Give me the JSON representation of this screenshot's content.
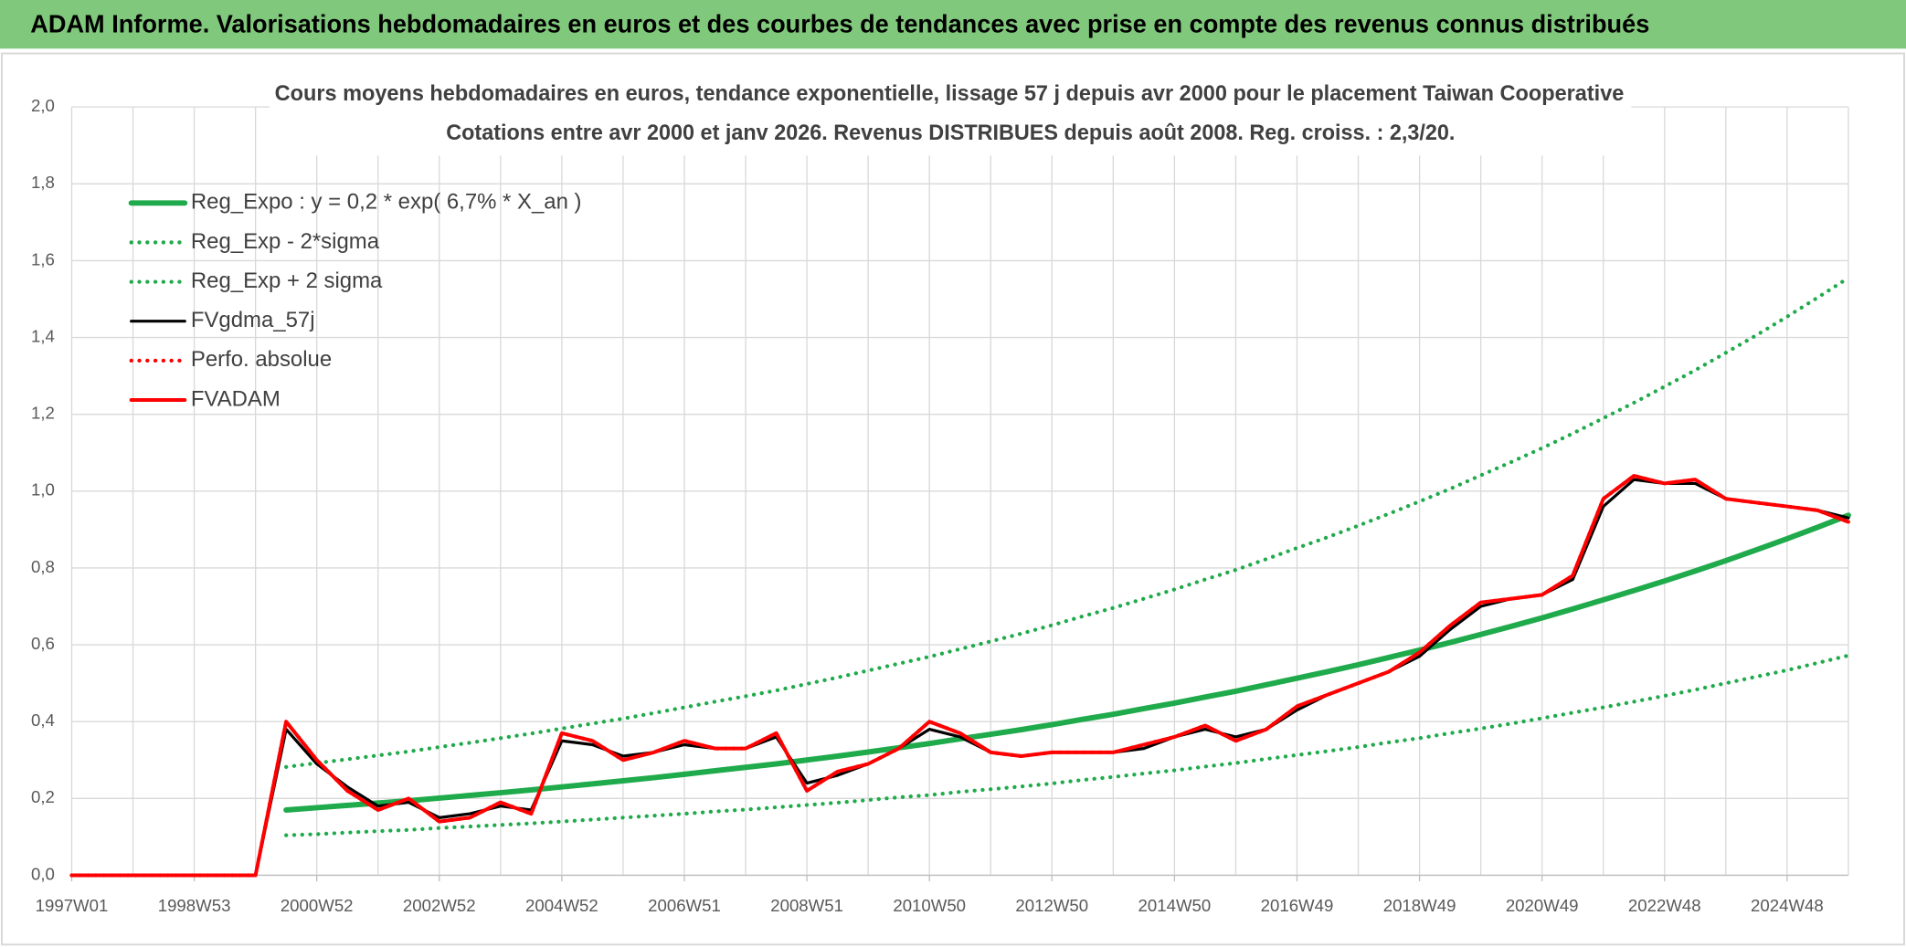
{
  "header": "ADAM Informe. Valorisations hebdomadaires en euros et des courbes de tendances avec prise en compte des revenus connus distribués",
  "chart_data": {
    "type": "line",
    "title": "Cours moyens hebdomadaires en euros, tendance exponentielle, lissage 57 j depuis avr 2000 pour le placement Taiwan Cooperative",
    "subtitle": "Cotations entre avr 2000 et janv 2026. Revenus DISTRIBUES depuis août 2008. Reg. croiss. : 2,3/20.",
    "categories": [
      "1997W01",
      null,
      null,
      null,
      "1998W53",
      null,
      null,
      null,
      "2000W52",
      null,
      null,
      null,
      "2002W52",
      null,
      null,
      null,
      "2004W52",
      null,
      null,
      null,
      "2006W51",
      null,
      null,
      null,
      "2008W51",
      null,
      null,
      null,
      "2010W50",
      null,
      null,
      null,
      "2012W50",
      null,
      null,
      null,
      "2014W50",
      null,
      null,
      null,
      "2016W49",
      null,
      null,
      null,
      "2018W49",
      null,
      null,
      null,
      "2020W49",
      null,
      null,
      null,
      "2022W48",
      null,
      null,
      null,
      "2024W48",
      null,
      null
    ],
    "ylim": [
      0,
      2
    ],
    "yticks": [
      {
        "value": 0,
        "label": "0,0"
      },
      {
        "value": 0.2,
        "label": "0,2"
      },
      {
        "value": 0.4,
        "label": "0,4"
      },
      {
        "value": 0.6,
        "label": "0,6"
      },
      {
        "value": 0.8,
        "label": "0,8"
      },
      {
        "value": 1.0,
        "label": "1,0"
      },
      {
        "value": 1.2,
        "label": "1,2"
      },
      {
        "value": 1.4,
        "label": "1,4"
      },
      {
        "value": 1.6,
        "label": "1,6"
      },
      {
        "value": 1.8,
        "label": "1,8"
      },
      {
        "value": 2.0,
        "label": "2,0"
      }
    ],
    "grid": true,
    "legend": "upper left",
    "series": [
      {
        "name": "Reg_Expo : y = 0,2 * exp( 6,7% *  X_an )",
        "color": "#1faa4b",
        "style": "solid",
        "values": [
          null,
          null,
          null,
          null,
          null,
          null,
          null,
          0.17,
          0.176,
          0.182,
          0.188,
          0.194,
          0.201,
          0.208,
          0.215,
          0.222,
          0.23,
          0.238,
          0.246,
          0.254,
          0.263,
          0.272,
          0.281,
          0.29,
          0.3,
          0.31,
          0.321,
          0.332,
          0.343,
          0.355,
          0.367,
          0.379,
          0.392,
          0.406,
          0.419,
          0.434,
          0.448,
          0.464,
          0.479,
          0.496,
          0.513,
          0.53,
          0.548,
          0.567,
          0.586,
          0.606,
          0.627,
          0.648,
          0.67,
          0.693,
          0.717,
          0.741,
          0.766,
          0.792,
          0.819,
          0.847,
          0.876,
          0.906,
          0.937
        ]
      },
      {
        "name": "Reg_Exp - 2*sigma",
        "color": "#1faa4b",
        "style": "dotted",
        "values": [
          null,
          null,
          null,
          null,
          null,
          null,
          null,
          0.104,
          0.107,
          0.111,
          0.115,
          0.118,
          0.123,
          0.127,
          0.131,
          0.135,
          0.14,
          0.145,
          0.15,
          0.155,
          0.16,
          0.166,
          0.171,
          0.177,
          0.183,
          0.189,
          0.196,
          0.203,
          0.209,
          0.217,
          0.224,
          0.231,
          0.239,
          0.248,
          0.256,
          0.265,
          0.273,
          0.283,
          0.292,
          0.303,
          0.313,
          0.323,
          0.334,
          0.346,
          0.357,
          0.37,
          0.382,
          0.395,
          0.409,
          0.423,
          0.437,
          0.452,
          0.467,
          0.483,
          0.5,
          0.517,
          0.534,
          0.553,
          0.572
        ]
      },
      {
        "name": "Reg_Exp + 2 sigma",
        "color": "#1faa4b",
        "style": "dotted",
        "values": [
          null,
          null,
          null,
          null,
          null,
          null,
          null,
          0.282,
          0.292,
          0.302,
          0.312,
          0.322,
          0.334,
          0.345,
          0.357,
          0.369,
          0.382,
          0.395,
          0.408,
          0.422,
          0.437,
          0.452,
          0.466,
          0.481,
          0.498,
          0.515,
          0.533,
          0.551,
          0.569,
          0.589,
          0.609,
          0.629,
          0.651,
          0.674,
          0.696,
          0.72,
          0.744,
          0.77,
          0.795,
          0.823,
          0.852,
          0.88,
          0.91,
          0.941,
          0.973,
          1.006,
          1.041,
          1.076,
          1.112,
          1.15,
          1.19,
          1.23,
          1.272,
          1.315,
          1.36,
          1.406,
          1.454,
          1.504,
          1.555
        ]
      },
      {
        "name": "FVgdma_57j",
        "color": "#000000",
        "style": "solid",
        "values": [
          0,
          0,
          0,
          0,
          0,
          0,
          0,
          0.38,
          0.29,
          0.23,
          0.18,
          0.19,
          0.15,
          0.16,
          0.18,
          0.17,
          0.35,
          0.34,
          0.31,
          0.32,
          0.34,
          0.33,
          0.33,
          0.36,
          0.24,
          0.26,
          0.29,
          0.33,
          0.38,
          0.36,
          0.32,
          0.31,
          0.32,
          0.32,
          0.32,
          0.33,
          0.36,
          0.38,
          0.36,
          0.38,
          0.43,
          0.47,
          0.5,
          0.53,
          0.57,
          0.64,
          0.7,
          0.72,
          0.73,
          0.77,
          0.96,
          1.03,
          1.02,
          1.02,
          0.98,
          0.97,
          0.96,
          0.95,
          0.93
        ]
      },
      {
        "name": "Perfo. absolue",
        "color": "#ff0000",
        "style": "dotted",
        "values": [
          0,
          0,
          0,
          0,
          0,
          0,
          0,
          0.4,
          0.3,
          0.22,
          0.17,
          0.2,
          0.14,
          0.15,
          0.19,
          0.16,
          0.37,
          0.35,
          0.3,
          0.32,
          0.35,
          0.33,
          0.33,
          0.37,
          0.22,
          0.27,
          0.29,
          0.33,
          0.4,
          0.37,
          0.32,
          0.31,
          0.32,
          0.32,
          0.32,
          0.34,
          0.36,
          0.39,
          0.35,
          0.38,
          0.44,
          0.47,
          0.5,
          0.53,
          0.58,
          0.65,
          0.71,
          0.72,
          0.73,
          0.78,
          0.98,
          1.04,
          1.02,
          1.03,
          0.98,
          0.97,
          0.96,
          0.95,
          0.92
        ]
      },
      {
        "name": "FVADAM",
        "color": "#ff0000",
        "style": "solid",
        "values": [
          0,
          0,
          0,
          0,
          0,
          0,
          0,
          0.4,
          0.3,
          0.22,
          0.17,
          0.2,
          0.14,
          0.15,
          0.19,
          0.16,
          0.37,
          0.35,
          0.3,
          0.32,
          0.35,
          0.33,
          0.33,
          0.37,
          0.22,
          0.27,
          0.29,
          0.33,
          0.4,
          0.37,
          0.32,
          0.31,
          0.32,
          0.32,
          0.32,
          0.34,
          0.36,
          0.39,
          0.35,
          0.38,
          0.44,
          0.47,
          0.5,
          0.53,
          0.58,
          0.65,
          0.71,
          0.72,
          0.73,
          0.78,
          0.98,
          1.04,
          1.02,
          1.03,
          0.98,
          0.97,
          0.96,
          0.95,
          0.92
        ]
      }
    ]
  }
}
